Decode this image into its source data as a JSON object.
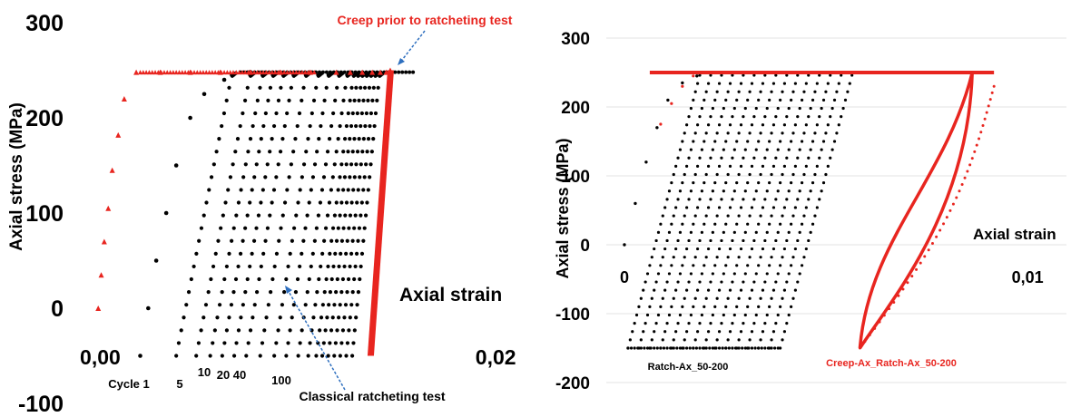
{
  "colors": {
    "black_series": "#000000",
    "red_series": "#e8251f",
    "arrow": "#2e6fbf",
    "grid": "#e3e3e3"
  },
  "chart_data": [
    {
      "type": "scatter",
      "title": "",
      "xlabel": "Axial strain",
      "ylabel": "Axial stress (MPa)",
      "xlim": [
        -0.0007,
        0.0204
      ],
      "ylim": [
        -100,
        300
      ],
      "x_ticks": [
        "0,00",
        "0,02"
      ],
      "y_ticks": [
        "300",
        "200",
        "100",
        "0",
        "-100"
      ],
      "grid": false,
      "series": [
        {
          "color": "#000000",
          "marker": "circle",
          "values_desc": "classical ratcheting loops",
          "monotonic_x": [
            0.002,
            0.0024,
            0.0028,
            0.0033,
            0.0038,
            0.0045,
            0.0052,
            0.0062,
            0.0075
          ],
          "monotonic_y": [
            -50,
            0,
            50,
            100,
            150,
            200,
            225,
            240,
            248
          ],
          "loop_start_x": [
            0.0038,
            0.0048,
            0.0055,
            0.0061,
            0.0067,
            0.0073,
            0.008,
            0.0087,
            0.0093,
            0.0099,
            0.0104,
            0.0108,
            0.0111,
            0.0114,
            0.0117,
            0.012,
            0.0123,
            0.0126
          ],
          "loop_width": 0.0028,
          "upper_stress": 248,
          "lower_stress": -50
        },
        {
          "color": "#e8251f",
          "marker": "triangle",
          "values_desc": "creep prior to ratcheting test",
          "x": [
            -0.0001,
            5e-05,
            0.0002,
            0.0004,
            0.0006,
            0.0009,
            0.0012,
            0.0018,
            0.003,
            0.0045,
            0.006,
            0.0075,
            0.009,
            0.0105,
            0.0118,
            0.0125,
            0.0131,
            0.0136,
            0.014,
            0.0143,
            0.0145
          ],
          "y": [
            0,
            35,
            70,
            105,
            145,
            182,
            220,
            248,
            248,
            248,
            248,
            248,
            248,
            248,
            248,
            248,
            248,
            248,
            248,
            248,
            250
          ],
          "band_x_top": 0.0145,
          "band_x_bottom": 0.0135,
          "band_y_top": 250,
          "band_y_bottom": -50
        }
      ],
      "annotations": [
        {
          "text": "Creep prior to ratcheting test",
          "color": "#e8251f"
        },
        {
          "text": "Classical ratcheting test",
          "color": "#000000"
        },
        {
          "text": "Cycle 1"
        },
        {
          "text": "5"
        },
        {
          "text": "10"
        },
        {
          "text": "20"
        },
        {
          "text": "40"
        },
        {
          "text": "100"
        }
      ]
    },
    {
      "type": "scatter",
      "title": "",
      "xlabel": "Axial strain",
      "ylabel": "Axial stress (MPa)",
      "xlim": [
        -0.0005,
        0.0122
      ],
      "ylim": [
        -200,
        300
      ],
      "x_ticks": [
        "0",
        "0,01"
      ],
      "y_ticks": [
        "300",
        "200",
        "100",
        "0",
        "-100",
        "-200"
      ],
      "grid": true,
      "series": [
        {
          "name": "Ratch-Ax_50-200",
          "color": "#000000",
          "marker": "circle",
          "monotonic_x": [
            0,
            0.0003,
            0.0006,
            0.0009,
            0.0012,
            0.0016,
            0.002,
            0.0025
          ],
          "monotonic_y": [
            0,
            60,
            120,
            170,
            210,
            235,
            245,
            250
          ],
          "loop_start_x": [
            0.0001,
            0.0004,
            0.0007,
            0.001,
            0.0013,
            0.0016,
            0.0019,
            0.0022,
            0.0025,
            0.0028,
            0.0031,
            0.0034,
            0.0037,
            0.004,
            0.0043
          ],
          "loop_width": 0.002,
          "upper_stress": 250,
          "lower_stress": -150
        },
        {
          "name": "Creep-Ax_Ratch-Ax_50-200",
          "color": "#e8251f",
          "marker": "circle",
          "flat_x": [
            0.0007,
            0.0102
          ],
          "flat_y": 250,
          "loop_top_x": 0.0096,
          "loop_bottom_x": 0.0065,
          "loop_top_y": 250,
          "loop_bottom_y": -150,
          "outer_top_x": 0.0102,
          "outer_top_y": 230
        }
      ]
    }
  ]
}
